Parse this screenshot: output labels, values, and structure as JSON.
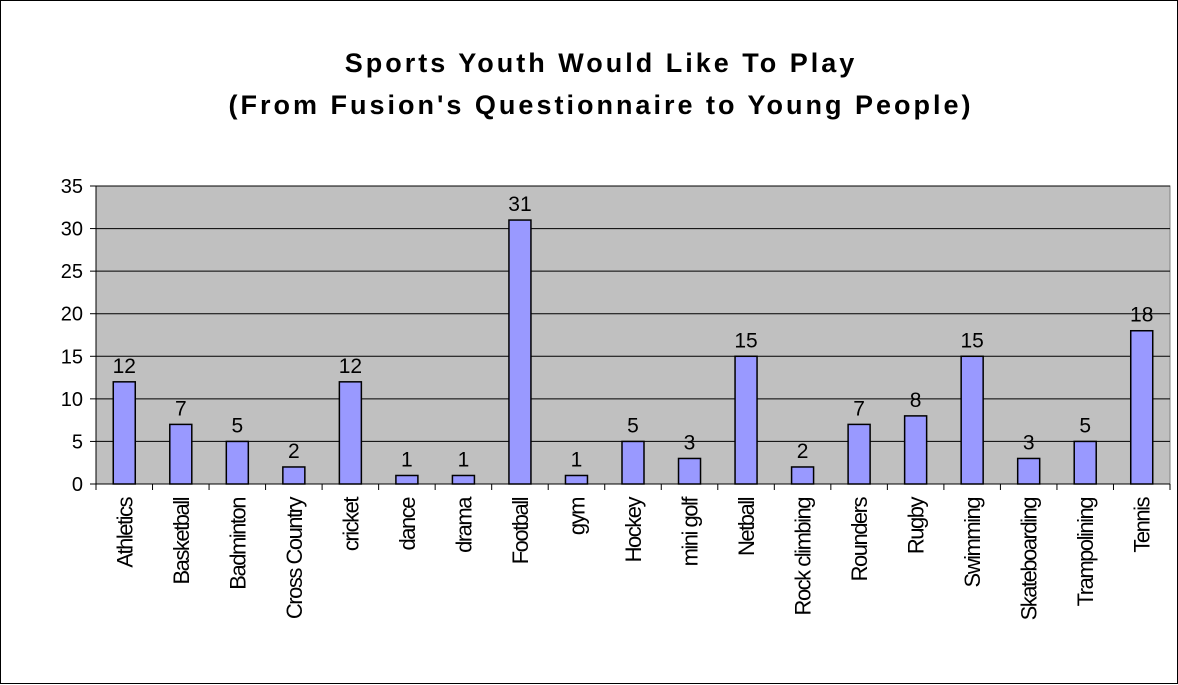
{
  "chart_data": {
    "type": "bar",
    "title": "Sports Youth Would Like To Play",
    "subtitle": "(From Fusion's Questionnaire to Young People)",
    "xlabel": "",
    "ylabel": "",
    "ylim": [
      0,
      35
    ],
    "yticks": [
      "0",
      "5",
      "10",
      "15",
      "20",
      "25",
      "30",
      "35"
    ],
    "grid": true,
    "categories": [
      "Athletics",
      "Basketball",
      "Badminton",
      "Cross Country",
      "cricket",
      "dance",
      "drama",
      "Football",
      "gym",
      "Hockey",
      "mini golf",
      "Netball",
      "Rock climbing",
      "Rounders",
      "Rugby",
      "Swimming",
      "Skateboarding",
      "Trampolining",
      "Tennis"
    ],
    "values": [
      12,
      7,
      5,
      2,
      12,
      1,
      1,
      31,
      1,
      5,
      3,
      15,
      2,
      7,
      8,
      15,
      3,
      5,
      18
    ],
    "value_labels": [
      "12",
      "7",
      "5",
      "2",
      "12",
      "1",
      "1",
      "31",
      "1",
      "5",
      "3",
      "15",
      "2",
      "7",
      "8",
      "15",
      "3",
      "5",
      "18"
    ],
    "colors": {
      "bar": "#9999ff",
      "plot_bg": "#c0c0c0",
      "grid": "#000000"
    }
  }
}
